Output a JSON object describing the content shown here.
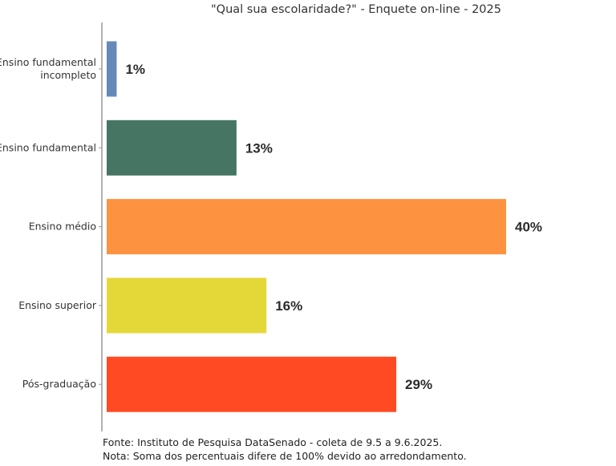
{
  "chart_data": {
    "type": "bar",
    "orientation": "horizontal",
    "title": "\"Qual sua escolaridade?\" - Enquete on-line - 2025",
    "categories": [
      [
        "Ensino fundamental",
        "incompleto"
      ],
      [
        "Ensino fundamental"
      ],
      [
        "Ensino médio"
      ],
      [
        "Ensino superior"
      ],
      [
        "Pós-graduação"
      ]
    ],
    "values": [
      1,
      13,
      40,
      16,
      29
    ],
    "labels": [
      "1%",
      "13%",
      "40%",
      "16%",
      "29%"
    ],
    "colors": [
      "#6589b8",
      "#467563",
      "#fd9340",
      "#e4d838",
      "#ff4a23"
    ],
    "xlim": [
      0,
      42
    ],
    "grid": false,
    "xlabel": "",
    "ylabel": ""
  },
  "footer": {
    "source": "Fonte: Instituto de Pesquisa DataSenado - coleta de 9.5 a 9.6.2025.",
    "note": "Nota: Soma dos percentuais difere de 100% devido ao arredondamento."
  }
}
